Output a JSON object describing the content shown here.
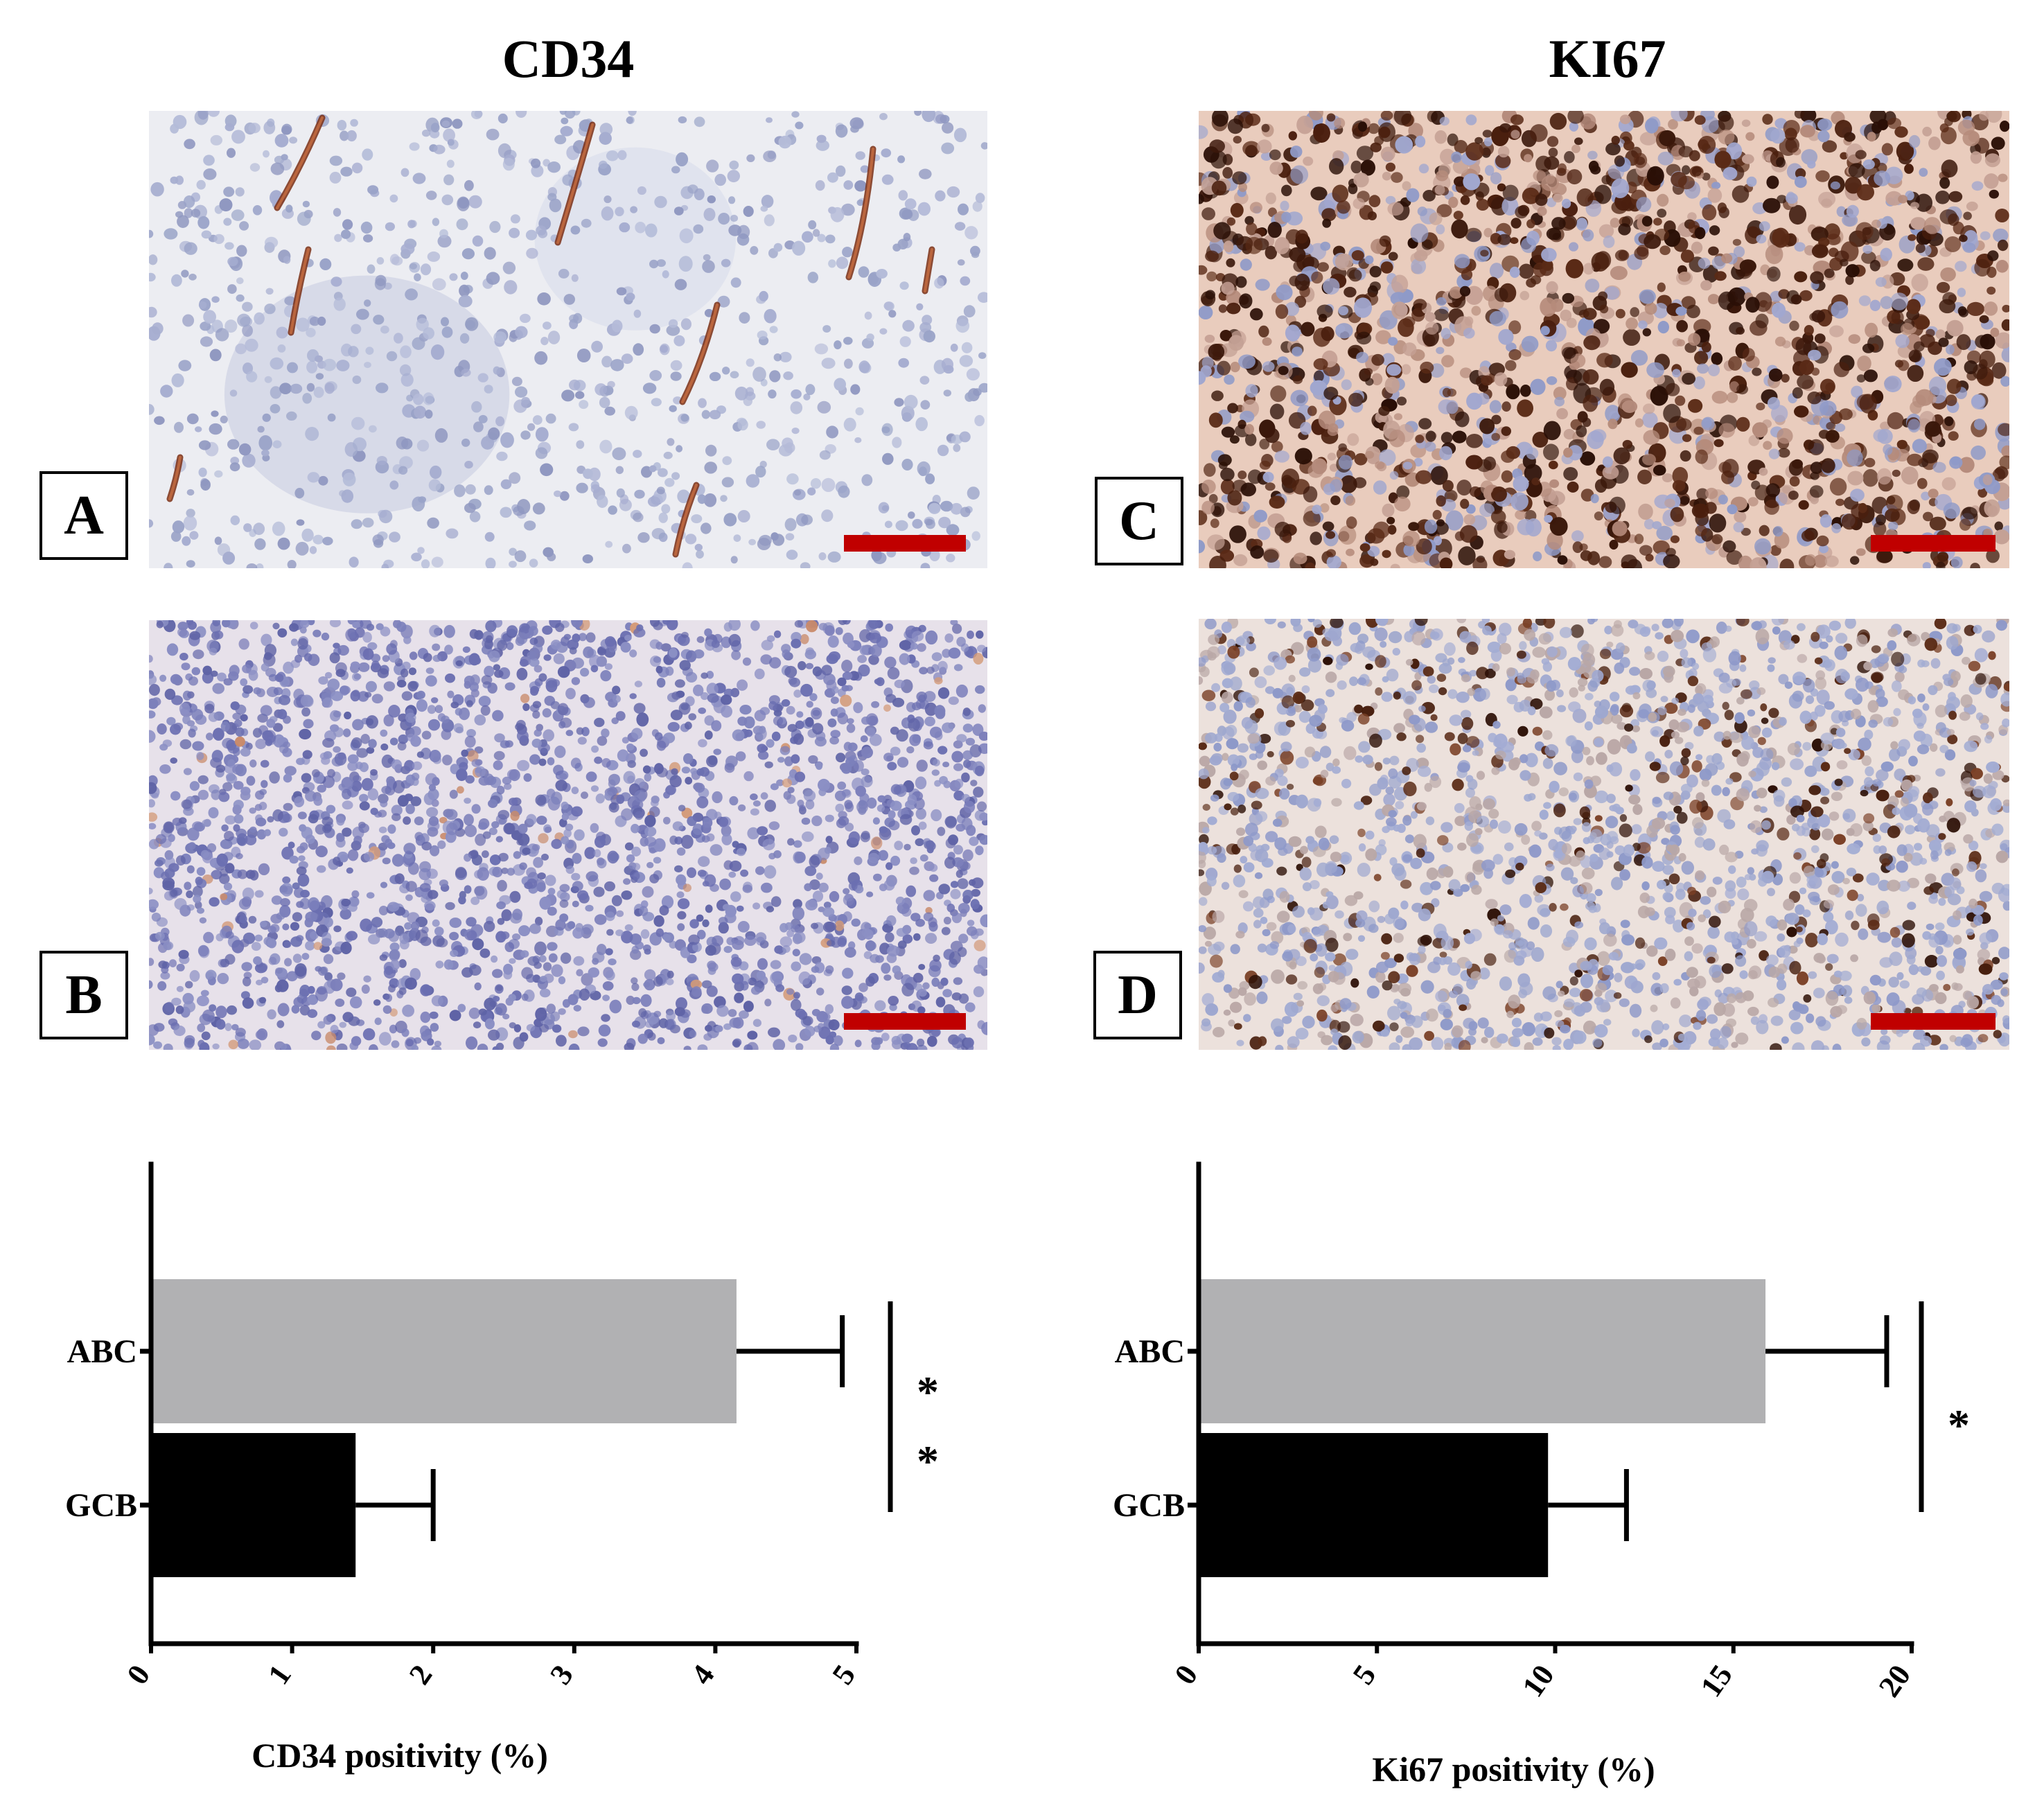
{
  "figure": {
    "column_titles": {
      "left": "CD34",
      "right": "KI67"
    },
    "panels": [
      {
        "label": "A",
        "stain": "cd34-high"
      },
      {
        "label": "B",
        "stain": "cd34-low"
      },
      {
        "label": "C",
        "stain": "ki67-high"
      },
      {
        "label": "D",
        "stain": "ki67-low"
      }
    ],
    "scale_bar_color": "#c00000"
  },
  "chart_data": [
    {
      "type": "bar",
      "orientation": "horizontal",
      "categories": [
        "ABC",
        "GCB"
      ],
      "values": [
        4.15,
        1.45
      ],
      "errors": [
        0.75,
        0.55
      ],
      "colors": [
        "#b1b1b3",
        "#000000"
      ],
      "xlabel": "CD34 positivity (%)",
      "xlim": [
        0,
        5
      ],
      "xticks": [
        "0",
        "1",
        "2",
        "3",
        "4",
        "5"
      ],
      "significance": [
        "*",
        "*"
      ]
    },
    {
      "type": "bar",
      "orientation": "horizontal",
      "categories": [
        "ABC",
        "GCB"
      ],
      "values": [
        15.9,
        9.8
      ],
      "errors": [
        3.4,
        2.2
      ],
      "colors": [
        "#b1b1b3",
        "#000000"
      ],
      "xlabel": "Ki67 positivity (%)",
      "xlim": [
        0,
        20
      ],
      "xticks": [
        "0",
        "5",
        "10",
        "15",
        "20"
      ],
      "significance": [
        "*"
      ]
    }
  ]
}
